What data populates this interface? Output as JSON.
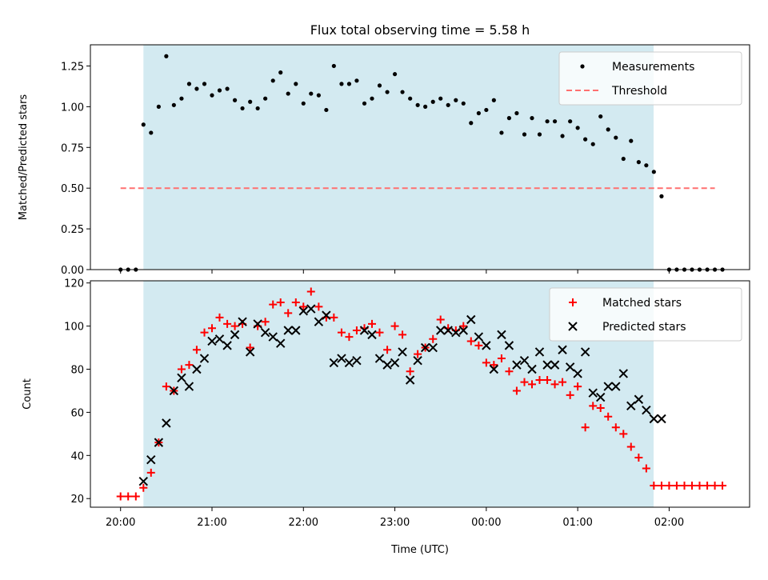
{
  "title": "Flux total observing time = 5.58 h",
  "x_axis": {
    "label": "Time (UTC)",
    "ticks": [
      "20:00",
      "21:00",
      "22:00",
      "23:00",
      "00:00",
      "01:00",
      "02:00"
    ]
  },
  "observing_window": {
    "start_hour": 0.25,
    "end_hour": 5.83,
    "color": "#d3eaf1"
  },
  "chart_data": [
    {
      "type": "scatter",
      "ylabel": "Matched/Predicted stars",
      "ylim": [
        0,
        1.38
      ],
      "yticks": [
        "0.00",
        "0.25",
        "0.50",
        "0.75",
        "1.00",
        "1.25"
      ],
      "ytick_values": [
        0,
        0.25,
        0.5,
        0.75,
        1.0,
        1.25
      ],
      "legend_position": "top-right",
      "series": [
        {
          "name": "Measurements",
          "color": "#000000",
          "marker": "dot",
          "x": [
            0.0,
            0.083,
            0.167,
            0.25,
            0.333,
            0.417,
            0.5,
            0.583,
            0.667,
            0.75,
            0.833,
            0.917,
            1.0,
            1.083,
            1.167,
            1.25,
            1.333,
            1.417,
            1.5,
            1.583,
            1.667,
            1.75,
            1.833,
            1.917,
            2.0,
            2.083,
            2.167,
            2.25,
            2.333,
            2.417,
            2.5,
            2.583,
            2.667,
            2.75,
            2.833,
            2.917,
            3.0,
            3.083,
            3.167,
            3.25,
            3.333,
            3.417,
            3.5,
            3.583,
            3.667,
            3.75,
            3.833,
            3.917,
            4.0,
            4.083,
            4.167,
            4.25,
            4.333,
            4.417,
            4.5,
            4.583,
            4.667,
            4.75,
            4.833,
            4.917,
            5.0,
            5.083,
            5.167,
            5.25,
            5.333,
            5.417,
            5.5,
            5.583,
            5.667,
            5.75,
            5.833,
            5.917,
            6.0,
            6.083,
            6.167,
            6.25,
            6.333,
            6.417,
            6.5,
            6.583
          ],
          "y": [
            0.0,
            0.0,
            0.0,
            0.89,
            0.84,
            1.0,
            1.31,
            1.01,
            1.05,
            1.14,
            1.11,
            1.14,
            1.07,
            1.1,
            1.11,
            1.04,
            0.99,
            1.03,
            0.99,
            1.05,
            1.16,
            1.21,
            1.08,
            1.14,
            1.02,
            1.08,
            1.07,
            0.98,
            1.25,
            1.14,
            1.14,
            1.16,
            1.02,
            1.05,
            1.13,
            1.09,
            1.2,
            1.09,
            1.05,
            1.01,
            1.0,
            1.03,
            1.05,
            1.01,
            1.04,
            1.02,
            0.9,
            0.96,
            0.98,
            1.04,
            0.84,
            0.93,
            0.96,
            0.83,
            0.93,
            0.83,
            0.91,
            0.91,
            0.82,
            0.91,
            0.87,
            0.8,
            0.77,
            0.94,
            0.86,
            0.81,
            0.68,
            0.79,
            0.66,
            0.64,
            0.6,
            0.45,
            0.0,
            0.0,
            0.0,
            0.0,
            0.0,
            0.0,
            0.0,
            0.0
          ]
        },
        {
          "name": "Threshold",
          "color": "#ff7070",
          "style": "dashed",
          "x": [
            0.0,
            6.5
          ],
          "y": [
            0.5,
            0.5
          ]
        }
      ]
    },
    {
      "type": "scatter",
      "ylabel": "Count",
      "ylim": [
        16,
        121
      ],
      "yticks": [
        "20",
        "40",
        "60",
        "80",
        "100",
        "120"
      ],
      "ytick_values": [
        20,
        40,
        60,
        80,
        100,
        120
      ],
      "legend_position": "top-right",
      "series": [
        {
          "name": "Matched stars",
          "color": "#ff0000",
          "marker": "plus",
          "x": [
            0.0,
            0.083,
            0.167,
            0.25,
            0.333,
            0.417,
            0.5,
            0.583,
            0.667,
            0.75,
            0.833,
            0.917,
            1.0,
            1.083,
            1.167,
            1.25,
            1.333,
            1.417,
            1.5,
            1.583,
            1.667,
            1.75,
            1.833,
            1.917,
            2.0,
            2.083,
            2.167,
            2.25,
            2.333,
            2.417,
            2.5,
            2.583,
            2.667,
            2.75,
            2.833,
            2.917,
            3.0,
            3.083,
            3.167,
            3.25,
            3.333,
            3.417,
            3.5,
            3.583,
            3.667,
            3.75,
            3.833,
            3.917,
            4.0,
            4.083,
            4.167,
            4.25,
            4.333,
            4.417,
            4.5,
            4.583,
            4.667,
            4.75,
            4.833,
            4.917,
            5.0,
            5.083,
            5.167,
            5.25,
            5.333,
            5.417,
            5.5,
            5.583,
            5.667,
            5.75,
            5.833,
            5.917,
            6.0,
            6.083,
            6.167,
            6.25,
            6.333,
            6.417,
            6.5,
            6.583
          ],
          "y": [
            21,
            21,
            21,
            25,
            32,
            46,
            72,
            70,
            80,
            82,
            89,
            97,
            99,
            104,
            101,
            100,
            101,
            90,
            100,
            102,
            110,
            111,
            106,
            111,
            109,
            116,
            109,
            104,
            104,
            97,
            95,
            98,
            99,
            101,
            97,
            89,
            100,
            96,
            79,
            87,
            90,
            94,
            103,
            99,
            98,
            100,
            93,
            91,
            83,
            82,
            85,
            79,
            70,
            74,
            73,
            75,
            75,
            73,
            74,
            68,
            72,
            53,
            63,
            62,
            58,
            53,
            50,
            44,
            39,
            34,
            26,
            26,
            26,
            26,
            26,
            26,
            26,
            26,
            26,
            26
          ]
        },
        {
          "name": "Predicted stars",
          "color": "#000000",
          "marker": "x",
          "x": [
            0.25,
            0.333,
            0.417,
            0.5,
            0.583,
            0.667,
            0.75,
            0.833,
            0.917,
            1.0,
            1.083,
            1.167,
            1.25,
            1.333,
            1.417,
            1.5,
            1.583,
            1.667,
            1.75,
            1.833,
            1.917,
            2.0,
            2.083,
            2.167,
            2.25,
            2.333,
            2.417,
            2.5,
            2.583,
            2.667,
            2.75,
            2.833,
            2.917,
            3.0,
            3.083,
            3.167,
            3.25,
            3.333,
            3.417,
            3.5,
            3.583,
            3.667,
            3.75,
            3.833,
            3.917,
            4.0,
            4.083,
            4.167,
            4.25,
            4.333,
            4.417,
            4.5,
            4.583,
            4.667,
            4.75,
            4.833,
            4.917,
            5.0,
            5.083,
            5.167,
            5.25,
            5.333,
            5.417,
            5.5,
            5.583,
            5.667,
            5.75,
            5.833,
            5.917
          ],
          "y": [
            28,
            38,
            46,
            55,
            70,
            76,
            72,
            80,
            85,
            93,
            94,
            91,
            96,
            102,
            88,
            101,
            97,
            95,
            92,
            98,
            98,
            107,
            108,
            102,
            105,
            83,
            85,
            83,
            84,
            98,
            96,
            85,
            82,
            83,
            88,
            75,
            84,
            90,
            90,
            98,
            98,
            97,
            98,
            103,
            95,
            91,
            80,
            96,
            91,
            82,
            84,
            80,
            88,
            82,
            82,
            89,
            81,
            78,
            88,
            69,
            67,
            72,
            72,
            78,
            63,
            66,
            61,
            57,
            57
          ]
        }
      ]
    }
  ]
}
